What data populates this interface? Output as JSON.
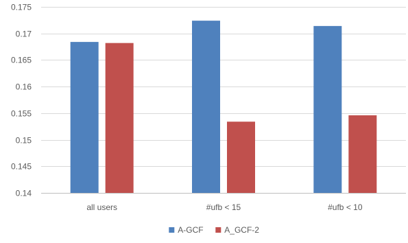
{
  "chart_data": {
    "type": "bar",
    "title": "",
    "xlabel": "",
    "ylabel": "",
    "categories": [
      "all users",
      "#ufb < 15",
      "#ufb < 10"
    ],
    "series": [
      {
        "name": "A-GCF",
        "color": "#4f81bd",
        "values": [
          0.1684,
          0.1724,
          0.1714
        ]
      },
      {
        "name": "A_GCF-2",
        "color": "#c0504d",
        "values": [
          0.1682,
          0.1534,
          0.1546
        ]
      }
    ],
    "ylim": [
      0.14,
      0.175
    ],
    "yticks": [
      "0.14",
      "0.145",
      "0.15",
      "0.155",
      "0.16",
      "0.165",
      "0.17",
      "0.175"
    ],
    "grid": true,
    "gridColor": "#d9d9d9",
    "legend": "bottom"
  }
}
